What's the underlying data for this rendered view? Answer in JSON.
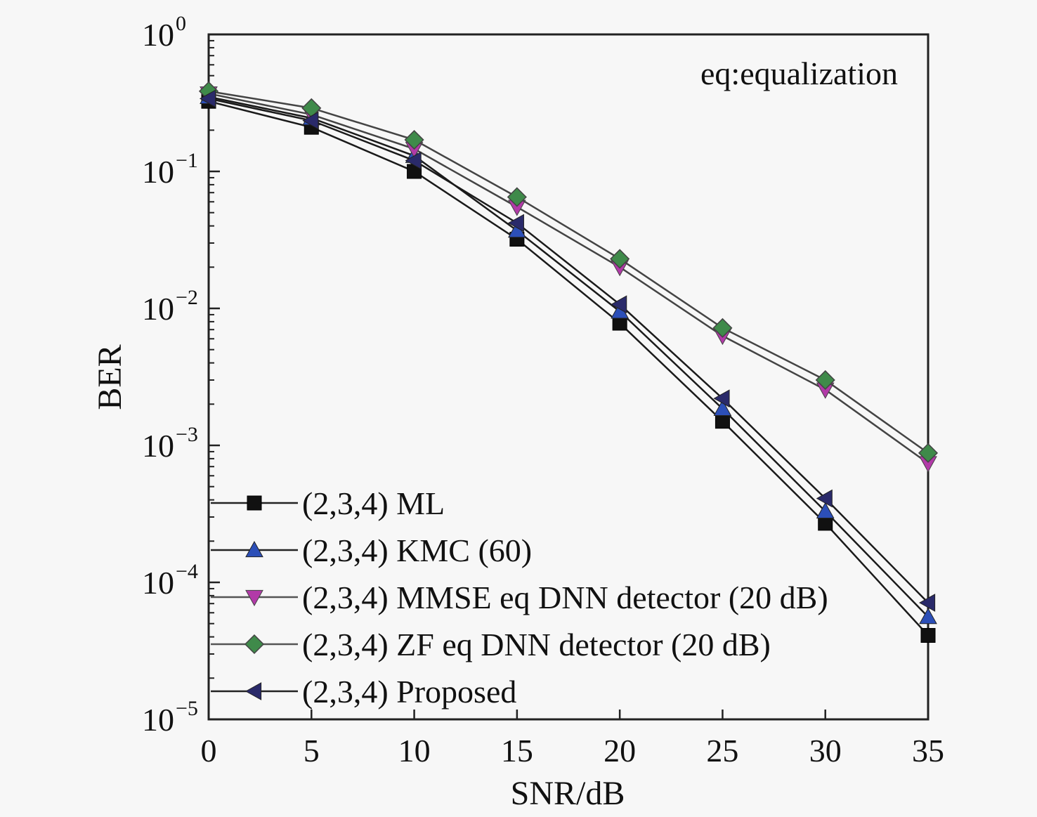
{
  "chart_data": {
    "type": "line",
    "title": "",
    "xlabel": "SNR/dB",
    "ylabel": "BER",
    "xlim": [
      0,
      35
    ],
    "ylim": [
      1e-05,
      1
    ],
    "yscale": "log",
    "x": [
      0,
      5,
      10,
      15,
      20,
      25,
      30,
      35
    ],
    "xticks": [
      "0",
      "5",
      "10",
      "15",
      "20",
      "25",
      "30",
      "35"
    ],
    "yticks": [
      {
        "base": "10",
        "exp": "0"
      },
      {
        "base": "10",
        "exp": "−1"
      },
      {
        "base": "10",
        "exp": "−2"
      },
      {
        "base": "10",
        "exp": "−3"
      },
      {
        "base": "10",
        "exp": "−4"
      },
      {
        "base": "10",
        "exp": "−5"
      }
    ],
    "annotation": "eq:equalization",
    "grid": false,
    "legend_position": "bottom-left",
    "series": [
      {
        "name": "(2,3,4) ML",
        "marker": "square",
        "color": "#111111",
        "values": [
          0.325,
          0.21,
          0.1,
          0.032,
          0.0078,
          0.0015,
          0.00027,
          4.1e-05
        ]
      },
      {
        "name": "(2,3,4) KMC (60)",
        "marker": "triangle-up",
        "color": "#2c4fb8",
        "values": [
          0.35,
          0.245,
          0.13,
          0.037,
          0.0095,
          0.00185,
          0.00033,
          5.6e-05
        ]
      },
      {
        "name": "(2,3,4) MMSE eq DNN detector (20 dB)",
        "marker": "triangle-down",
        "color": "#b23aa8",
        "values": [
          0.37,
          0.26,
          0.146,
          0.055,
          0.02,
          0.0063,
          0.00255,
          0.00074
        ]
      },
      {
        "name": "(2,3,4) ZF eq DNN detector (20 dB)",
        "marker": "diamond",
        "color": "#3f8a4a",
        "values": [
          0.385,
          0.29,
          0.17,
          0.065,
          0.023,
          0.0072,
          0.003,
          0.00088
        ]
      },
      {
        "name": "(2,3,4) Proposed",
        "marker": "triangle-left",
        "color": "#2a2a6a",
        "values": [
          0.34,
          0.235,
          0.12,
          0.042,
          0.0107,
          0.0022,
          0.00041,
          7.1e-05
        ]
      }
    ]
  }
}
